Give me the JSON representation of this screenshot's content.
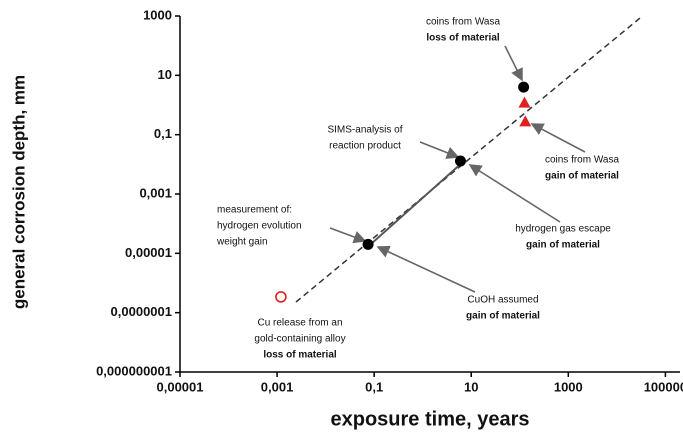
{
  "chart_data": {
    "type": "scatter",
    "xlabel": "exposure time, years",
    "ylabel": "general corrosion depth, mm",
    "log_x": true,
    "log_y": true,
    "xlim": [
      1e-05,
      200000
    ],
    "ylim": [
      1e-09,
      1000
    ],
    "xticks": [
      {
        "value": 1e-05,
        "label": "0,00001"
      },
      {
        "value": 0.001,
        "label": "0,001"
      },
      {
        "value": 0.1,
        "label": "0,1"
      },
      10,
      1000,
      100000
    ],
    "yticks": [
      {
        "value": 1e-09,
        "label": "0,000000001"
      },
      {
        "value": 1e-07,
        "label": "0,0000001"
      },
      {
        "value": 1e-05,
        "label": "0,00001"
      },
      {
        "value": 0.001,
        "label": "0,001"
      },
      {
        "value": 0.1,
        "label": "0,1"
      },
      10,
      1000
    ],
    "points": [
      {
        "x": 120,
        "y": 4,
        "color": "#000000",
        "marker": "circle"
      },
      {
        "x": 125,
        "y": 1.2,
        "color": "#e02020",
        "marker": "triangle"
      },
      {
        "x": 130,
        "y": 0.28,
        "color": "#e02020",
        "marker": "triangle"
      },
      {
        "x": 6,
        "y": 0.013,
        "color": "#000000",
        "marker": "circle"
      },
      {
        "x": 0.075,
        "y": 2e-05,
        "color": "#000000",
        "marker": "circle"
      },
      {
        "x": 0.0012,
        "y": 3.4e-07,
        "color": "#e02020",
        "marker": "open-circle"
      }
    ],
    "annotations": [
      {
        "lines": [
          "coins from Wasa",
          "loss of material"
        ]
      },
      {
        "lines": [
          "SIMS-analysis of",
          "reaction product"
        ]
      },
      {
        "lines": [
          "measurement of:",
          "hydrogen evolution",
          "weight gain"
        ]
      },
      {
        "lines": [
          "coins from Wasa",
          "gain of material"
        ]
      },
      {
        "lines": [
          "hydrogen gas escape",
          "gain of material"
        ]
      },
      {
        "lines": [
          "CuOH assumed",
          "gain of material"
        ]
      },
      {
        "lines": [
          "Cu release from an",
          "gold-containing alloy",
          "loss of material"
        ]
      }
    ]
  }
}
